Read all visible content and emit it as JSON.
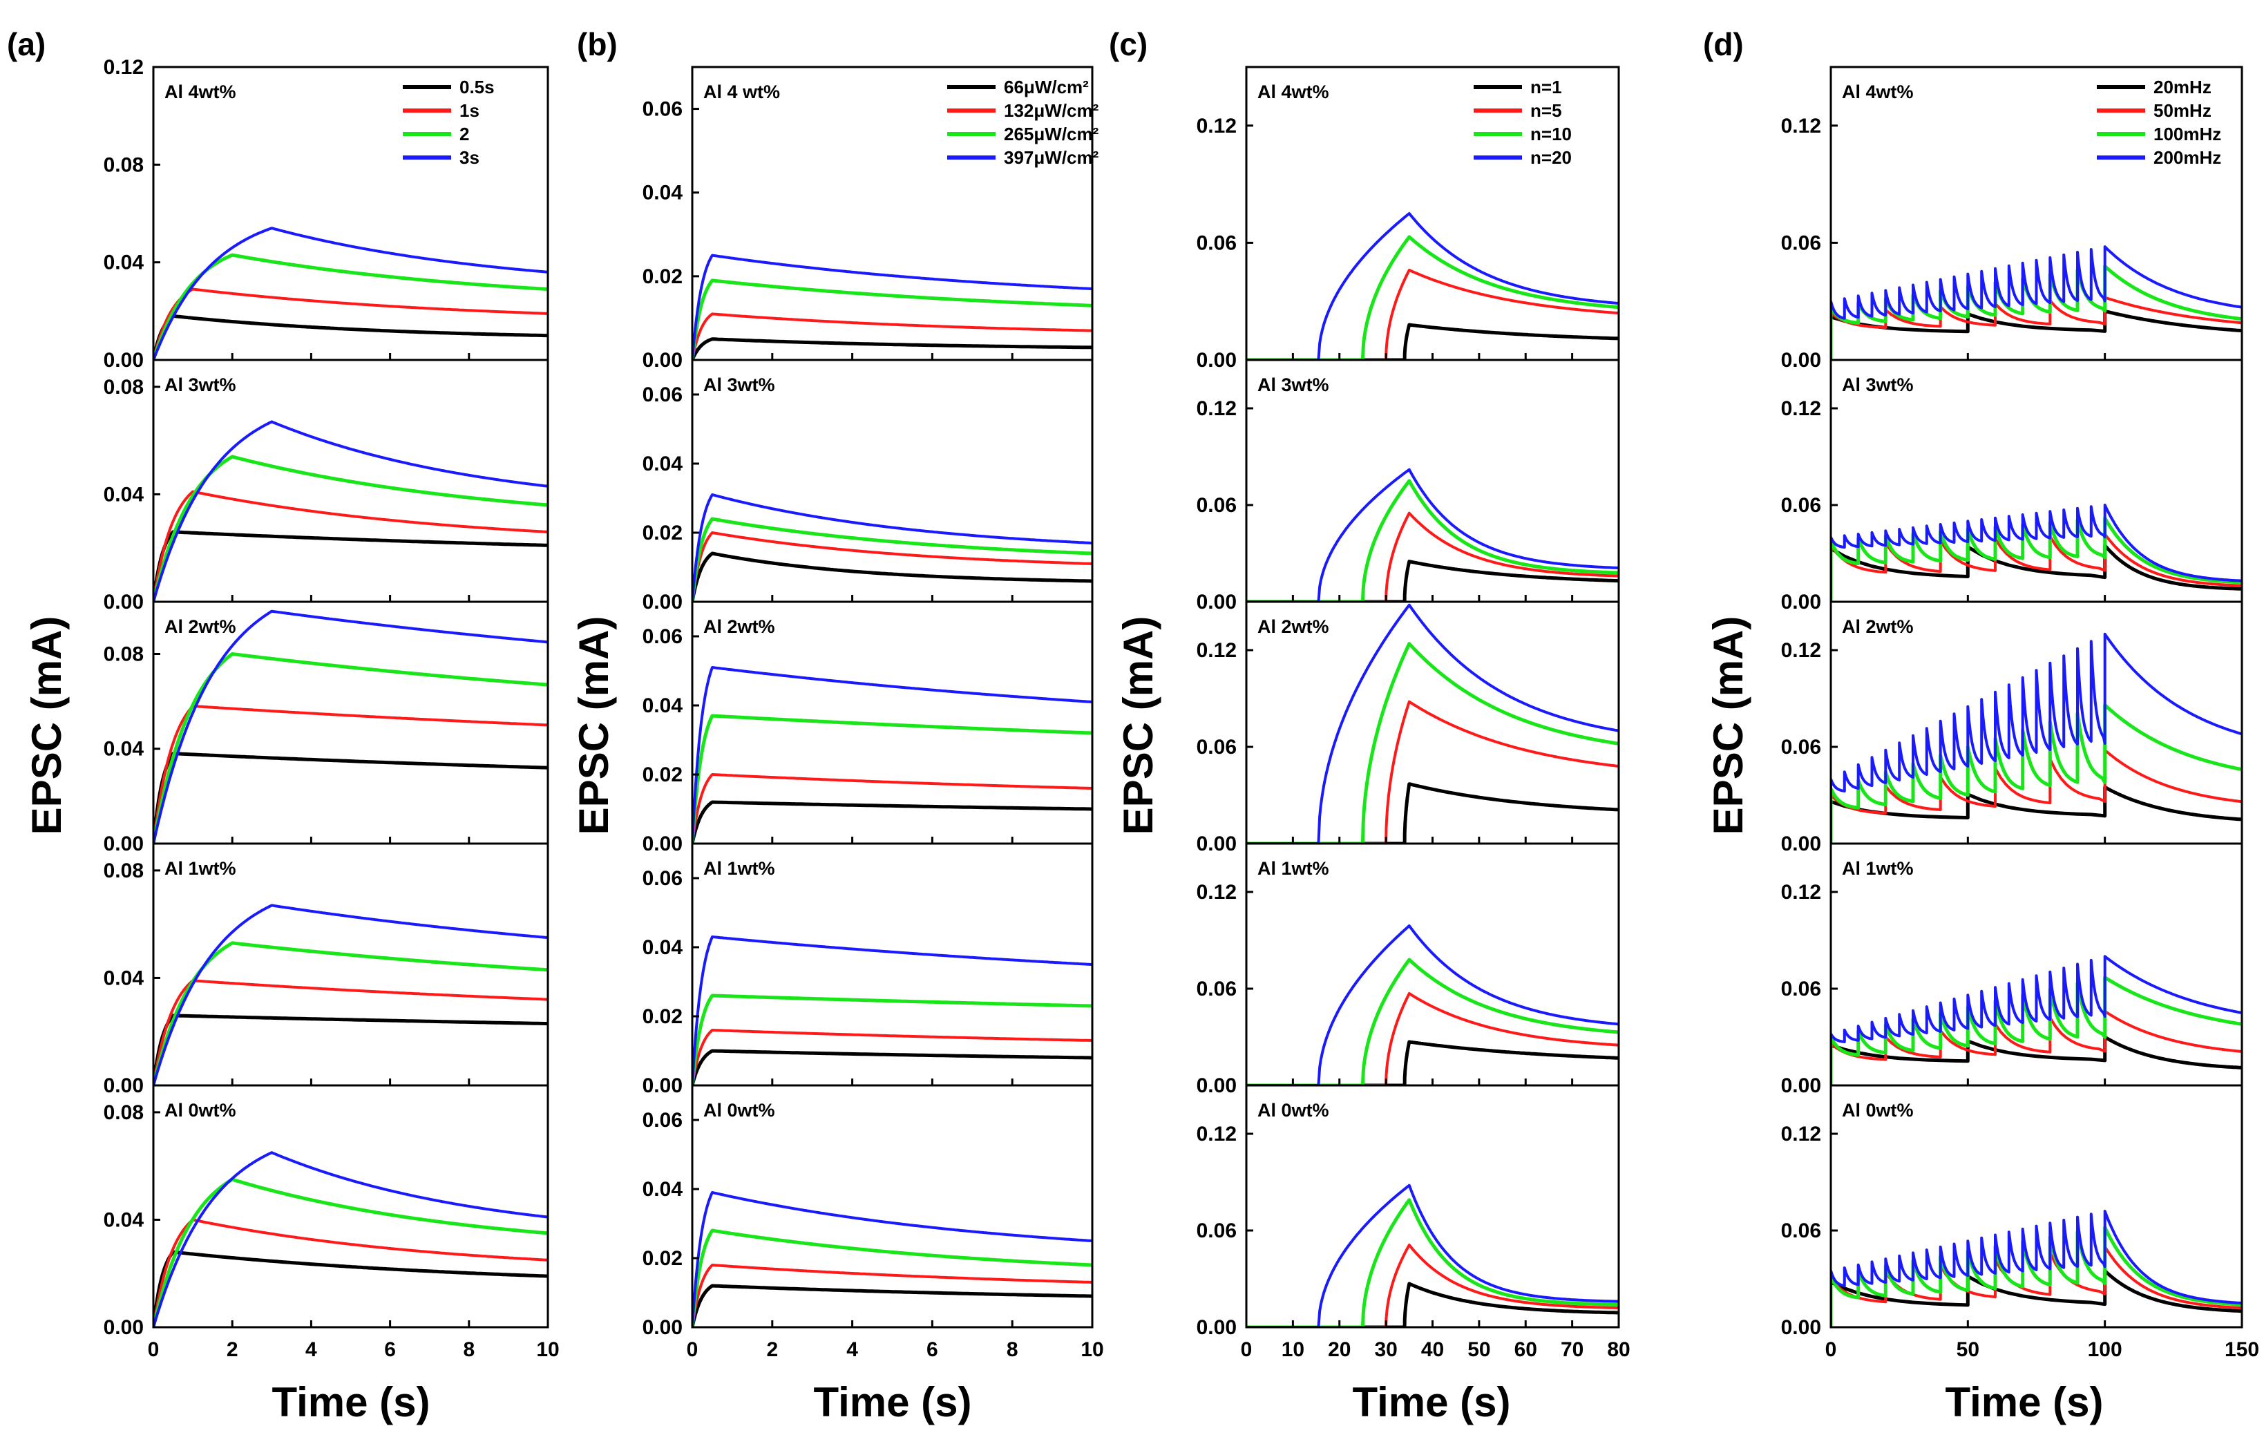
{
  "colors": {
    "s0": "#000000",
    "s1": "#ff1a1a",
    "s2": "#19e619",
    "s3": "#1a1aff"
  },
  "chart_data": [
    {
      "id": "a",
      "type": "line",
      "panel_label": "(a)",
      "xlabel": "Time (s)",
      "ylabel": "EPSC (mA)",
      "xlim": [
        0,
        10
      ],
      "xticks": [
        "0",
        "2",
        "4",
        "6",
        "8",
        "10"
      ],
      "legend": [
        "0.5s",
        "1s",
        "2",
        "3s"
      ],
      "legend_position": "top-right",
      "legend_line_thickness": [
        5,
        4,
        4,
        5
      ],
      "model": "pulse",
      "rows": [
        {
          "label": "Al 4wt%",
          "ylim": [
            0,
            0.12
          ],
          "yticks": [
            "0.00",
            "0.04",
            "0.08",
            "0.12"
          ],
          "series": [
            {
              "t_end": 0.5,
              "peak": 0.018,
              "final": 0.01
            },
            {
              "t_end": 1,
              "peak": 0.029,
              "final": 0.019
            },
            {
              "t_end": 2,
              "peak": 0.043,
              "final": 0.029
            },
            {
              "t_end": 3,
              "peak": 0.054,
              "final": 0.036
            }
          ]
        },
        {
          "label": "Al 3wt%",
          "ylim": [
            0,
            0.09
          ],
          "yticks": [
            "0.00",
            "0.04",
            "0.08"
          ],
          "series": [
            {
              "t_end": 0.5,
              "peak": 0.026,
              "final": 0.021
            },
            {
              "t_end": 1,
              "peak": 0.041,
              "final": 0.026
            },
            {
              "t_end": 2,
              "peak": 0.054,
              "final": 0.036
            },
            {
              "t_end": 3,
              "peak": 0.067,
              "final": 0.043
            }
          ]
        },
        {
          "label": "Al 2wt%",
          "ylim": [
            0,
            0.102
          ],
          "yticks": [
            "0.00",
            "0.04",
            "0.08"
          ],
          "series": [
            {
              "t_end": 0.5,
              "peak": 0.038,
              "final": 0.032
            },
            {
              "t_end": 1,
              "peak": 0.058,
              "final": 0.05
            },
            {
              "t_end": 2,
              "peak": 0.08,
              "final": 0.067
            },
            {
              "t_end": 3,
              "peak": 0.098,
              "final": 0.085
            }
          ]
        },
        {
          "label": "Al 1wt%",
          "ylim": [
            0,
            0.09
          ],
          "yticks": [
            "0.00",
            "0.04",
            "0.08"
          ],
          "series": [
            {
              "t_end": 0.5,
              "peak": 0.026,
              "final": 0.023
            },
            {
              "t_end": 1,
              "peak": 0.039,
              "final": 0.032
            },
            {
              "t_end": 2,
              "peak": 0.053,
              "final": 0.043
            },
            {
              "t_end": 3,
              "peak": 0.067,
              "final": 0.055
            }
          ]
        },
        {
          "label": "Al 0wt%",
          "ylim": [
            0,
            0.09
          ],
          "yticks": [
            "0.00",
            "0.04",
            "0.08"
          ],
          "series": [
            {
              "t_end": 0.5,
              "peak": 0.028,
              "final": 0.019
            },
            {
              "t_end": 1,
              "peak": 0.04,
              "final": 0.025
            },
            {
              "t_end": 2,
              "peak": 0.055,
              "final": 0.035
            },
            {
              "t_end": 3,
              "peak": 0.065,
              "final": 0.041
            }
          ]
        }
      ]
    },
    {
      "id": "b",
      "type": "line",
      "panel_label": "(b)",
      "xlabel": "Time (s)",
      "ylabel": "EPSC (mA)",
      "xlim": [
        0,
        10
      ],
      "xticks": [
        "0",
        "2",
        "4",
        "6",
        "8",
        "10"
      ],
      "legend": [
        "66μW/cm²",
        "132μW/cm²",
        "265μW/cm²",
        "397μW/cm²"
      ],
      "legend_position": "top-right",
      "legend_line_thickness": [
        4,
        4,
        5,
        4
      ],
      "model": "pulse",
      "rows": [
        {
          "label": "Al 4 wt%",
          "ylim": [
            0,
            0.07
          ],
          "yticks": [
            "0.00",
            "0.02",
            "0.04",
            "0.06"
          ],
          "series": [
            {
              "t_end": 0.5,
              "peak": 0.005,
              "final": 0.003
            },
            {
              "t_end": 0.5,
              "peak": 0.011,
              "final": 0.007
            },
            {
              "t_end": 0.5,
              "peak": 0.019,
              "final": 0.013
            },
            {
              "t_end": 0.5,
              "peak": 0.025,
              "final": 0.017
            }
          ]
        },
        {
          "label": "Al 3wt%",
          "ylim": [
            0,
            0.07
          ],
          "yticks": [
            "0.00",
            "0.02",
            "0.04",
            "0.06"
          ],
          "series": [
            {
              "t_end": 0.5,
              "peak": 0.014,
              "final": 0.006
            },
            {
              "t_end": 0.5,
              "peak": 0.02,
              "final": 0.011
            },
            {
              "t_end": 0.5,
              "peak": 0.024,
              "final": 0.014
            },
            {
              "t_end": 0.5,
              "peak": 0.031,
              "final": 0.017
            }
          ]
        },
        {
          "label": "Al 2wt%",
          "ylim": [
            0,
            0.07
          ],
          "yticks": [
            "0.00",
            "0.02",
            "0.04",
            "0.06"
          ],
          "series": [
            {
              "t_end": 0.5,
              "peak": 0.012,
              "final": 0.01
            },
            {
              "t_end": 0.5,
              "peak": 0.02,
              "final": 0.016
            },
            {
              "t_end": 0.5,
              "peak": 0.037,
              "final": 0.032
            },
            {
              "t_end": 0.5,
              "peak": 0.051,
              "final": 0.041
            }
          ]
        },
        {
          "label": "Al 1wt%",
          "ylim": [
            0,
            0.07
          ],
          "yticks": [
            "0.00",
            "0.02",
            "0.04",
            "0.06"
          ],
          "series": [
            {
              "t_end": 0.5,
              "peak": 0.01,
              "final": 0.008
            },
            {
              "t_end": 0.5,
              "peak": 0.016,
              "final": 0.013
            },
            {
              "t_end": 0.5,
              "peak": 0.026,
              "final": 0.023
            },
            {
              "t_end": 0.5,
              "peak": 0.043,
              "final": 0.035
            }
          ]
        },
        {
          "label": "Al 0wt%",
          "ylim": [
            0,
            0.07
          ],
          "yticks": [
            "0.00",
            "0.02",
            "0.04",
            "0.06"
          ],
          "series": [
            {
              "t_end": 0.5,
              "peak": 0.012,
              "final": 0.009
            },
            {
              "t_end": 0.5,
              "peak": 0.018,
              "final": 0.013
            },
            {
              "t_end": 0.5,
              "peak": 0.028,
              "final": 0.018
            },
            {
              "t_end": 0.5,
              "peak": 0.039,
              "final": 0.025
            }
          ]
        }
      ]
    },
    {
      "id": "c",
      "type": "line",
      "panel_label": "(c)",
      "xlabel": "Time (s)",
      "ylabel": "EPSC (mA)",
      "xlim": [
        0,
        80
      ],
      "xticks": [
        "0",
        "10",
        "20",
        "30",
        "40",
        "50",
        "60",
        "70",
        "80"
      ],
      "legend": [
        "n=1",
        "n=5",
        "n=10",
        "n=20"
      ],
      "legend_position": "top-right",
      "legend_line_thickness": [
        5,
        4,
        4,
        5
      ],
      "model": "train",
      "rows": [
        {
          "label": "Al 4wt%",
          "ylim": [
            0,
            0.15
          ],
          "yticks": [
            "0.00",
            "0.06",
            "0.12"
          ],
          "series": [
            {
              "t_start": 34,
              "t_end": 35,
              "peak": 0.018,
              "final": 0.011
            },
            {
              "t_start": 30,
              "t_end": 35,
              "peak": 0.046,
              "final": 0.024
            },
            {
              "t_start": 25,
              "t_end": 35,
              "peak": 0.063,
              "final": 0.027
            },
            {
              "t_start": 15.5,
              "t_end": 35,
              "peak": 0.075,
              "final": 0.029
            }
          ]
        },
        {
          "label": "Al 3wt%",
          "ylim": [
            0,
            0.15
          ],
          "yticks": [
            "0.00",
            "0.06",
            "0.12"
          ],
          "series": [
            {
              "t_start": 34,
              "t_end": 35,
              "peak": 0.025,
              "final": 0.013
            },
            {
              "t_start": 30,
              "t_end": 35,
              "peak": 0.055,
              "final": 0.016
            },
            {
              "t_start": 25,
              "t_end": 35,
              "peak": 0.075,
              "final": 0.018
            },
            {
              "t_start": 15.5,
              "t_end": 35,
              "peak": 0.082,
              "final": 0.021
            }
          ]
        },
        {
          "label": "Al 2wt%",
          "ylim": [
            0,
            0.15
          ],
          "yticks": [
            "0.00",
            "0.06",
            "0.12"
          ],
          "series": [
            {
              "t_start": 34,
              "t_end": 35,
              "peak": 0.037,
              "final": 0.021
            },
            {
              "t_start": 30,
              "t_end": 35,
              "peak": 0.088,
              "final": 0.048
            },
            {
              "t_start": 25,
              "t_end": 35,
              "peak": 0.124,
              "final": 0.062
            },
            {
              "t_start": 15.5,
              "t_end": 35,
              "peak": 0.148,
              "final": 0.07
            }
          ]
        },
        {
          "label": "Al 1wt%",
          "ylim": [
            0,
            0.15
          ],
          "yticks": [
            "0.00",
            "0.06",
            "0.12"
          ],
          "series": [
            {
              "t_start": 34,
              "t_end": 35,
              "peak": 0.027,
              "final": 0.017
            },
            {
              "t_start": 30,
              "t_end": 35,
              "peak": 0.057,
              "final": 0.025
            },
            {
              "t_start": 25,
              "t_end": 35,
              "peak": 0.078,
              "final": 0.033
            },
            {
              "t_start": 15.5,
              "t_end": 35,
              "peak": 0.099,
              "final": 0.038
            }
          ]
        },
        {
          "label": "Al 0wt%",
          "ylim": [
            0,
            0.15
          ],
          "yticks": [
            "0.00",
            "0.06",
            "0.12"
          ],
          "series": [
            {
              "t_start": 34,
              "t_end": 35,
              "peak": 0.027,
              "final": 0.009
            },
            {
              "t_start": 30,
              "t_end": 35,
              "peak": 0.051,
              "final": 0.012
            },
            {
              "t_start": 25,
              "t_end": 35,
              "peak": 0.079,
              "final": 0.014
            },
            {
              "t_start": 15.5,
              "t_end": 35,
              "peak": 0.088,
              "final": 0.016
            }
          ]
        }
      ]
    },
    {
      "id": "d",
      "type": "line",
      "panel_label": "(d)",
      "xlabel": "Time (s)",
      "ylabel": "EPSC (mA)",
      "xlim": [
        0,
        150
      ],
      "xticks": [
        "0",
        "50",
        "100",
        "150"
      ],
      "legend": [
        "20mHz",
        "50mHz",
        "100mHz",
        "200mHz"
      ],
      "legend_position": "top-right",
      "legend_line_thickness": [
        3,
        3,
        3,
        3
      ],
      "model": "freq",
      "rows": [
        {
          "label": "Al 4wt%",
          "ylim": [
            0,
            0.15
          ],
          "yticks": [
            "0.00",
            "0.06",
            "0.12"
          ],
          "series": [
            {
              "period": 50,
              "first": 0.022,
              "last": 0.025,
              "base": 0.01,
              "final": 0.015
            },
            {
              "period": 20,
              "first": 0.024,
              "last": 0.032,
              "base": 0.012,
              "final": 0.019
            },
            {
              "period": 10,
              "first": 0.027,
              "last": 0.048,
              "base": 0.014,
              "final": 0.021
            },
            {
              "period": 5,
              "first": 0.03,
              "last": 0.058,
              "base": 0.016,
              "final": 0.027
            }
          ]
        },
        {
          "label": "Al 3wt%",
          "ylim": [
            0,
            0.15
          ],
          "yticks": [
            "0.00",
            "0.06",
            "0.12"
          ],
          "series": [
            {
              "period": 50,
              "first": 0.033,
              "last": 0.035,
              "base": 0.005,
              "final": 0.008
            },
            {
              "period": 20,
              "first": 0.035,
              "last": 0.042,
              "base": 0.008,
              "final": 0.01
            },
            {
              "period": 10,
              "first": 0.038,
              "last": 0.052,
              "base": 0.015,
              "final": 0.012
            },
            {
              "period": 5,
              "first": 0.04,
              "last": 0.06,
              "base": 0.03,
              "final": 0.013
            }
          ]
        },
        {
          "label": "Al 2wt%",
          "ylim": [
            0,
            0.15
          ],
          "yticks": [
            "0.00",
            "0.06",
            "0.12"
          ],
          "series": [
            {
              "period": 50,
              "first": 0.026,
              "last": 0.035,
              "base": 0.01,
              "final": 0.015
            },
            {
              "period": 20,
              "first": 0.03,
              "last": 0.058,
              "base": 0.012,
              "final": 0.026
            },
            {
              "period": 10,
              "first": 0.034,
              "last": 0.086,
              "base": 0.015,
              "final": 0.046
            },
            {
              "period": 5,
              "first": 0.04,
              "last": 0.13,
              "base": 0.028,
              "final": 0.068
            }
          ]
        },
        {
          "label": "Al 1wt%",
          "ylim": [
            0,
            0.15
          ],
          "yticks": [
            "0.00",
            "0.06",
            "0.12"
          ],
          "series": [
            {
              "period": 50,
              "first": 0.025,
              "last": 0.03,
              "base": 0.009,
              "final": 0.011
            },
            {
              "period": 20,
              "first": 0.026,
              "last": 0.046,
              "base": 0.01,
              "final": 0.021
            },
            {
              "period": 10,
              "first": 0.03,
              "last": 0.067,
              "base": 0.012,
              "final": 0.038
            },
            {
              "period": 5,
              "first": 0.032,
              "last": 0.08,
              "base": 0.024,
              "final": 0.045
            }
          ]
        },
        {
          "label": "Al 0wt%",
          "ylim": [
            0,
            0.15
          ],
          "yticks": [
            "0.00",
            "0.06",
            "0.12"
          ],
          "series": [
            {
              "period": 50,
              "first": 0.028,
              "last": 0.035,
              "base": 0.005,
              "final": 0.01
            },
            {
              "period": 20,
              "first": 0.03,
              "last": 0.05,
              "base": 0.007,
              "final": 0.012
            },
            {
              "period": 10,
              "first": 0.032,
              "last": 0.062,
              "base": 0.01,
              "final": 0.014
            },
            {
              "period": 5,
              "first": 0.035,
              "last": 0.072,
              "base": 0.02,
              "final": 0.015
            }
          ]
        }
      ]
    }
  ]
}
